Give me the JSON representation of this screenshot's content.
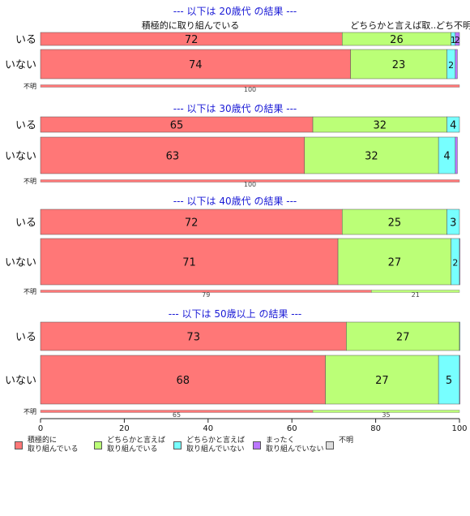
{
  "chart_data": {
    "type": "bar",
    "orientation": "horizontal",
    "stacked": true,
    "xlim": [
      0,
      100
    ],
    "x_ticks": [
      "0",
      "20",
      "40",
      "60",
      "80",
      "100"
    ],
    "series_names": [
      "積極的に\n取り組んでいる",
      "どちらかと言えば\n取り組んでいる",
      "どちらかと言えば\n取り組んでいない",
      "まったく\n取り組んでいない",
      "不明"
    ],
    "colors": [
      "#FF7777",
      "#BBFF77",
      "#77FFFF",
      "#BB77FF",
      "#DDDDDD"
    ],
    "top_labels": {
      "series1": "積極的に取り組んでいる",
      "series2": "どちらかと言えば取...",
      "extra": "どち不明"
    },
    "panels": [
      {
        "title": "--- 以下は 20歳代 の結果 ---",
        "rows": [
          {
            "label": "いる",
            "values": [
              72,
              26,
              1,
              2,
              0
            ]
          },
          {
            "label": "いない",
            "values": [
              74,
              23,
              2,
              0.5,
              0
            ]
          }
        ],
        "unknown": {
          "label": "不明",
          "values": [
            100,
            0
          ]
        }
      },
      {
        "title": "--- 以下は 30歳代 の結果 ---",
        "rows": [
          {
            "label": "いる",
            "values": [
              65,
              32,
              4,
              0,
              0
            ]
          },
          {
            "label": "いない",
            "values": [
              63,
              32,
              4,
              0.5,
              0
            ]
          }
        ],
        "unknown": {
          "label": "不明",
          "values": [
            100,
            0
          ]
        }
      },
      {
        "title": "--- 以下は 40歳代 の結果 ---",
        "rows": [
          {
            "label": "いる",
            "values": [
              72,
              25,
              3,
              0,
              0
            ]
          },
          {
            "label": "いない",
            "values": [
              71,
              27,
              2,
              0.5,
              0
            ]
          }
        ],
        "unknown": {
          "label": "不明",
          "values": [
            79,
            21
          ]
        }
      },
      {
        "title": "--- 以下は 50歳以上 の結果 ---",
        "rows": [
          {
            "label": "いる",
            "values": [
              73,
              27,
              0.5,
              0,
              0
            ]
          },
          {
            "label": "いない",
            "values": [
              68,
              27,
              5,
              0.5,
              0
            ]
          }
        ],
        "unknown": {
          "label": "不明",
          "values": [
            65,
            35
          ]
        }
      }
    ]
  }
}
